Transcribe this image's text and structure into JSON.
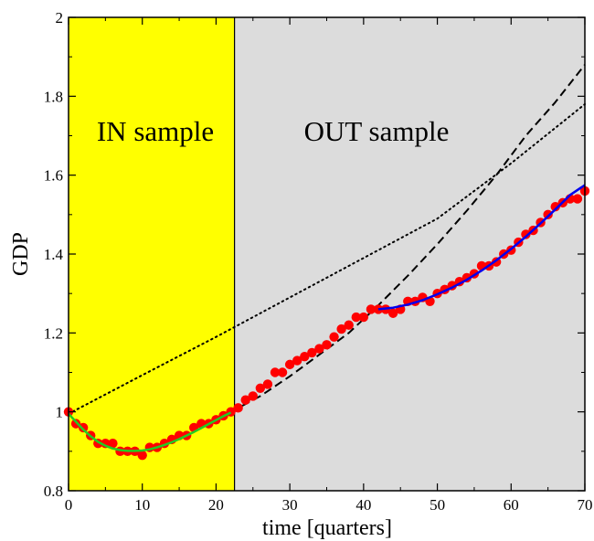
{
  "chart_data": {
    "type": "scatter",
    "title": "",
    "xlabel": "time [quarters]",
    "ylabel": "GDP",
    "xlim": [
      0,
      70
    ],
    "ylim": [
      0.8,
      2.0
    ],
    "xticks": [
      0,
      10,
      20,
      30,
      40,
      50,
      60,
      70
    ],
    "yticks": [
      0.8,
      1.0,
      1.2,
      1.4,
      1.6,
      1.8,
      2.0
    ],
    "ytick_labels": [
      "0.8",
      "1",
      "1.2",
      "1.4",
      "1.6",
      "1.8",
      "2"
    ],
    "grid": false,
    "regions": [
      {
        "label": "IN sample",
        "x_range": [
          0,
          22.5
        ],
        "color": "#ffff00"
      },
      {
        "label": "OUT sample",
        "x_range": [
          22.5,
          70
        ],
        "color": "#dcdcdc"
      }
    ],
    "series": [
      {
        "kind": "points",
        "color": "#ff0000",
        "x": [
          0,
          1,
          2,
          3,
          4,
          5,
          6,
          7,
          8,
          9,
          10,
          11,
          12,
          13,
          14,
          15,
          16,
          17,
          18,
          19,
          20,
          21,
          22,
          23,
          24,
          25,
          26,
          27,
          28,
          29,
          30,
          31,
          32,
          33,
          34,
          35,
          36,
          37,
          38,
          39,
          40,
          41,
          42,
          43,
          44,
          45,
          46,
          47,
          48,
          49,
          50,
          51,
          52,
          53,
          54,
          55,
          56,
          57,
          58,
          59,
          60,
          61,
          62,
          63,
          64,
          65,
          66,
          67,
          68,
          69,
          70
        ],
        "y": [
          1.0,
          0.97,
          0.96,
          0.94,
          0.92,
          0.92,
          0.92,
          0.9,
          0.9,
          0.9,
          0.89,
          0.91,
          0.91,
          0.92,
          0.93,
          0.94,
          0.94,
          0.96,
          0.97,
          0.97,
          0.98,
          0.99,
          1.0,
          1.01,
          1.03,
          1.04,
          1.06,
          1.07,
          1.1,
          1.1,
          1.12,
          1.13,
          1.14,
          1.15,
          1.16,
          1.17,
          1.19,
          1.21,
          1.22,
          1.24,
          1.24,
          1.26,
          1.26,
          1.26,
          1.25,
          1.26,
          1.28,
          1.28,
          1.29,
          1.28,
          1.3,
          1.31,
          1.32,
          1.33,
          1.34,
          1.35,
          1.37,
          1.37,
          1.38,
          1.4,
          1.41,
          1.43,
          1.45,
          1.46,
          1.48,
          1.5,
          1.52,
          1.53,
          1.54,
          1.54,
          1.56
        ]
      },
      {
        "kind": "line",
        "color": "#22cc22",
        "x": [
          0,
          1,
          2,
          3,
          4,
          5,
          6,
          7,
          8,
          9,
          10,
          11,
          12,
          13,
          14,
          15,
          16,
          17,
          18,
          19,
          20,
          21,
          22
        ],
        "y": [
          0.995,
          0.975,
          0.955,
          0.938,
          0.924,
          0.914,
          0.907,
          0.903,
          0.901,
          0.901,
          0.902,
          0.905,
          0.91,
          0.916,
          0.923,
          0.931,
          0.94,
          0.949,
          0.959,
          0.969,
          0.979,
          0.989,
          0.998
        ]
      },
      {
        "kind": "line",
        "color": "#0000ee",
        "x": [
          42,
          44,
          46,
          48,
          50,
          52,
          54,
          56,
          58,
          60,
          62,
          64,
          66,
          68,
          70
        ],
        "y": [
          1.26,
          1.264,
          1.272,
          1.283,
          1.298,
          1.315,
          1.335,
          1.358,
          1.384,
          1.413,
          1.444,
          1.478,
          1.513,
          1.55,
          1.575
        ]
      },
      {
        "kind": "line",
        "color": "#000000",
        "dash": "dashed",
        "x": [
          22,
          26,
          30,
          34,
          38,
          42,
          46,
          50,
          54,
          58,
          62,
          66,
          70
        ],
        "y": [
          1.0,
          1.04,
          1.09,
          1.145,
          1.2,
          1.27,
          1.345,
          1.425,
          1.51,
          1.6,
          1.7,
          1.785,
          1.88
        ]
      },
      {
        "kind": "line",
        "color": "#000000",
        "dash": "dotted",
        "x": [
          0,
          10,
          20,
          30,
          40,
          50,
          60,
          70
        ],
        "y": [
          0.995,
          1.093,
          1.19,
          1.29,
          1.39,
          1.49,
          1.63,
          1.78
        ]
      }
    ]
  }
}
